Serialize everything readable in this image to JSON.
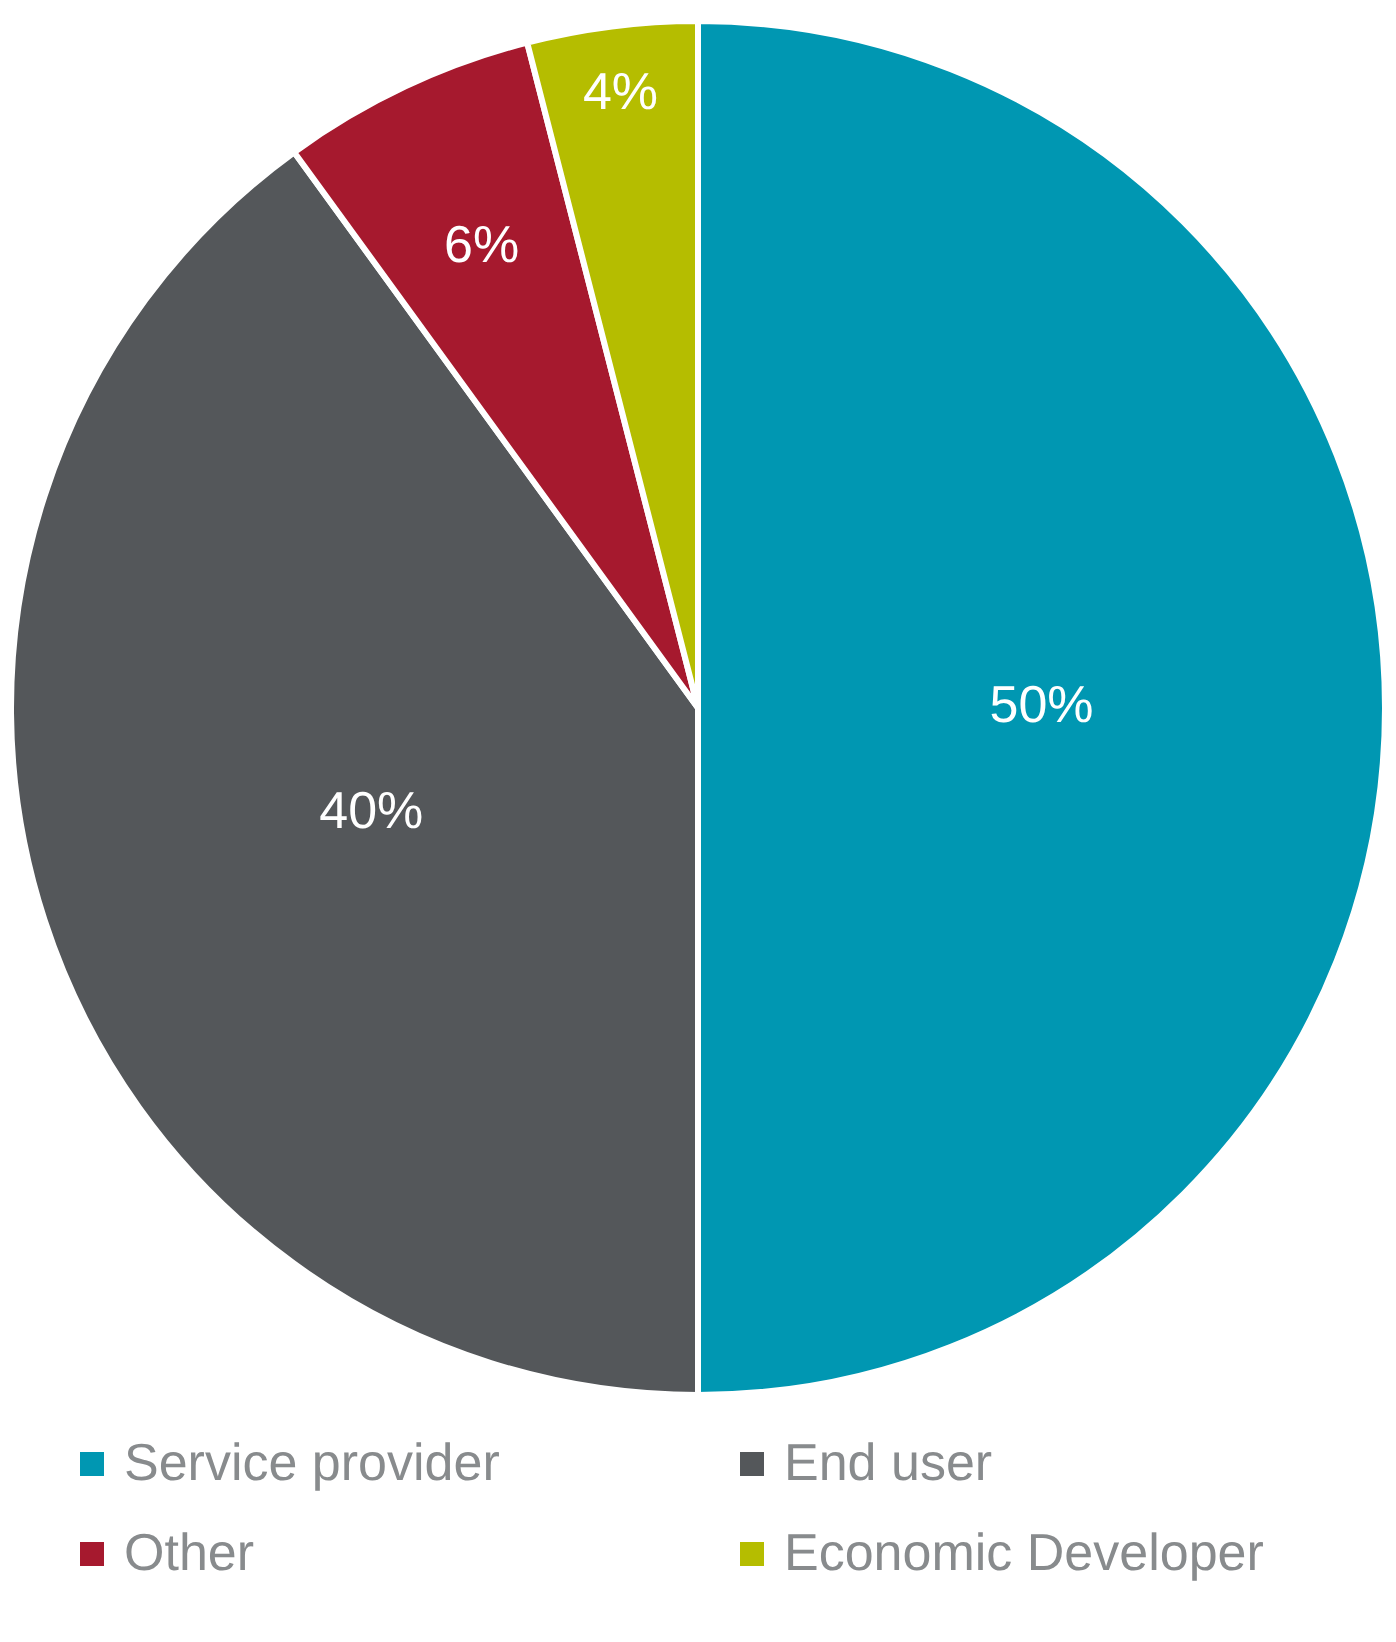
{
  "chart_data": {
    "type": "pie",
    "categories": [
      "Service provider",
      "End user",
      "Other",
      "Economic Developer"
    ],
    "values": [
      50,
      40,
      6,
      4
    ],
    "colors": [
      "#0097b2",
      "#54575a",
      "#a6192e",
      "#b5bd00"
    ],
    "value_labels": [
      "50%",
      "40%",
      "6%",
      "4%"
    ],
    "legend": "bottom"
  }
}
